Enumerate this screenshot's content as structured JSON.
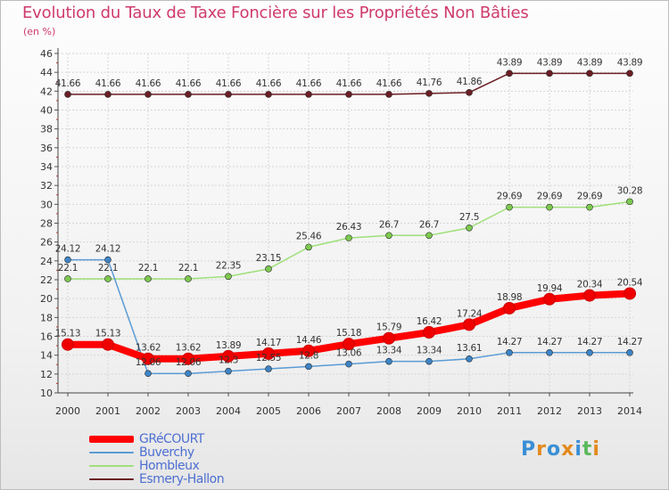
{
  "header": {
    "title": "Evolution du Taux de Taxe Foncière sur les Propriétés Non Bâties",
    "unit": "(en %)"
  },
  "logo": {
    "text": "Proxiti",
    "colors": [
      "#3a8fd6",
      "#e38a1f",
      "#3a8fd6",
      "#e38a1f",
      "#3a8fd6",
      "#5cb85c",
      "#e38a1f"
    ]
  },
  "chart_data": {
    "type": "line",
    "title": "Evolution du Taux de Taxe Foncière sur les Propriétés Non Bâties",
    "ylabel": "(en %)",
    "xlabel": "",
    "x": [
      2000,
      2001,
      2002,
      2003,
      2004,
      2005,
      2006,
      2007,
      2008,
      2009,
      2010,
      2011,
      2012,
      2013,
      2014
    ],
    "ylim": [
      10,
      46
    ],
    "yticks": [
      10,
      12,
      14,
      16,
      18,
      20,
      22,
      24,
      26,
      28,
      30,
      32,
      34,
      36,
      38,
      40,
      42,
      44,
      46
    ],
    "grid": true,
    "legend": "bottom-left",
    "series": [
      {
        "name": "Esmery-Hallon",
        "color": "#6b1e24",
        "marker": "#6b1e24",
        "width": 1.5,
        "values": [
          41.66,
          41.66,
          41.66,
          41.66,
          41.66,
          41.66,
          41.66,
          41.66,
          41.66,
          41.76,
          41.86,
          43.89,
          43.89,
          43.89,
          43.89
        ],
        "labels": [
          "41.66",
          "41.66",
          "41.66",
          "41.66",
          "41.66",
          "41.66",
          "41.66",
          "41.66",
          "41.66",
          "41.76",
          "41.86",
          "43.89",
          "43.89",
          "43.89",
          "43.89"
        ]
      },
      {
        "name": "Hombleux",
        "color": "#9fe07a",
        "marker": "#7dc94f",
        "width": 1.5,
        "values": [
          22.1,
          22.1,
          22.1,
          22.1,
          22.35,
          23.15,
          25.46,
          26.43,
          26.7,
          26.7,
          27.5,
          29.69,
          29.69,
          29.69,
          30.28
        ],
        "labels": [
          "22.1",
          "22.1",
          "22.1",
          "22.1",
          "22.35",
          "23.15",
          "25.46",
          "26.43",
          "26.7",
          "26.7",
          "27.5",
          "29.69",
          "29.69",
          "29.69",
          "30.28"
        ]
      },
      {
        "name": "Buverchy",
        "color": "#5b9bd5",
        "marker": "#3d84c6",
        "width": 1.5,
        "values": [
          24.12,
          24.12,
          12.06,
          12.06,
          12.3,
          12.55,
          12.8,
          13.06,
          13.34,
          13.34,
          13.61,
          14.27,
          14.27,
          14.27,
          14.27
        ],
        "labels": [
          "24.12",
          "24.12",
          "12.06",
          "12.06",
          "12.3",
          "12.55",
          "12.8",
          "13.06",
          "13.34",
          "13.34",
          "13.61",
          "14.27",
          "14.27",
          "14.27",
          "14.27"
        ]
      },
      {
        "name": "GRéCOURT",
        "color": "#ff0000",
        "marker": "#ee0000",
        "width": 8,
        "values": [
          15.13,
          15.13,
          13.62,
          13.62,
          13.89,
          14.17,
          14.46,
          15.18,
          15.79,
          16.42,
          17.24,
          18.98,
          19.94,
          20.34,
          20.54
        ],
        "labels": [
          "15.13",
          "15.13",
          "13.62",
          "13.62",
          "13.89",
          "14.17",
          "14.46",
          "15.18",
          "15.79",
          "16.42",
          "17.24",
          "18.98",
          "19.94",
          "20.34",
          "20.54"
        ]
      }
    ],
    "legend_order": [
      "GRéCOURT",
      "Buverchy",
      "Hombleux",
      "Esmery-Hallon"
    ]
  }
}
